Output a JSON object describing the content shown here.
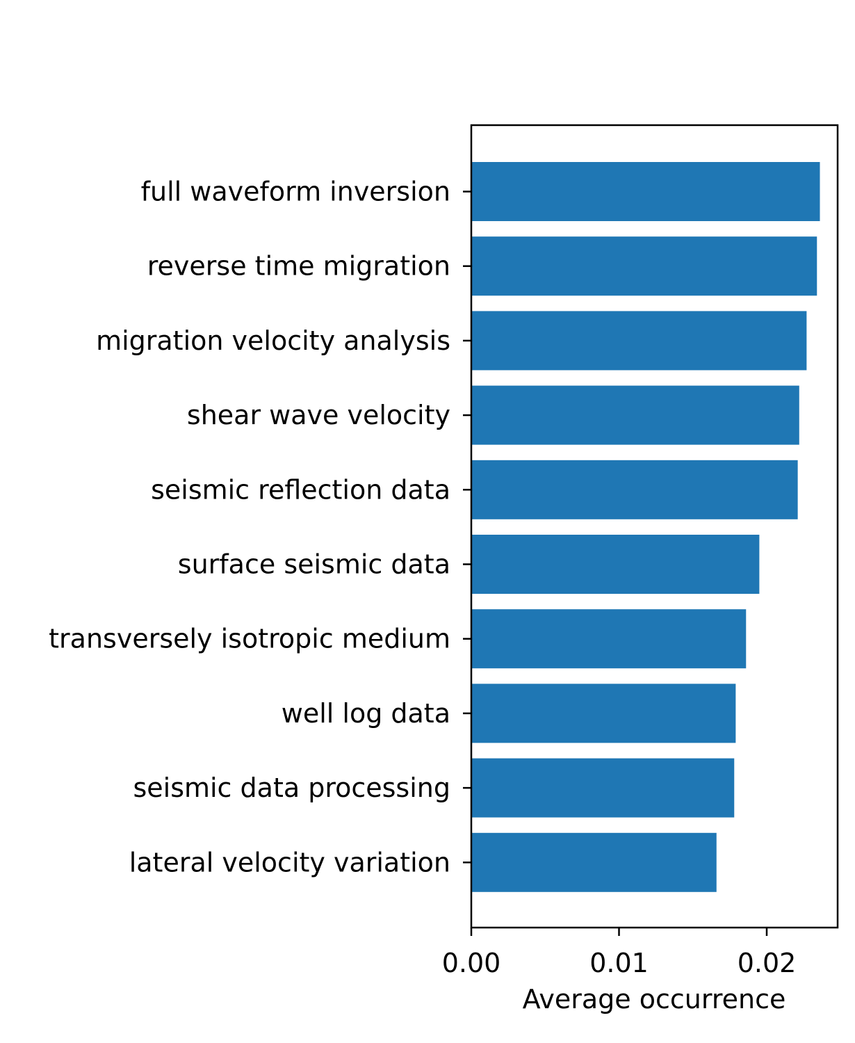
{
  "chart_data": {
    "type": "bar",
    "orientation": "horizontal",
    "title": "",
    "xlabel": "Average occurrence",
    "ylabel": "",
    "xlim": [
      0,
      0.0248
    ],
    "xticks": [
      {
        "value": 0.0,
        "label": "0.00"
      },
      {
        "value": 0.01,
        "label": "0.01"
      },
      {
        "value": 0.02,
        "label": "0.02"
      }
    ],
    "bar_color": "#1f77b4",
    "grid": false,
    "legend": "none",
    "categories": [
      "full waveform inversion",
      "reverse time migration",
      "migration velocity analysis",
      "shear wave velocity",
      "seismic reflection data",
      "surface seismic data",
      "transversely isotropic medium",
      "well log data",
      "seismic data processing",
      "lateral velocity variation"
    ],
    "values": [
      0.0236,
      0.0234,
      0.0227,
      0.0222,
      0.0221,
      0.0195,
      0.0186,
      0.0179,
      0.0178,
      0.0166
    ]
  }
}
